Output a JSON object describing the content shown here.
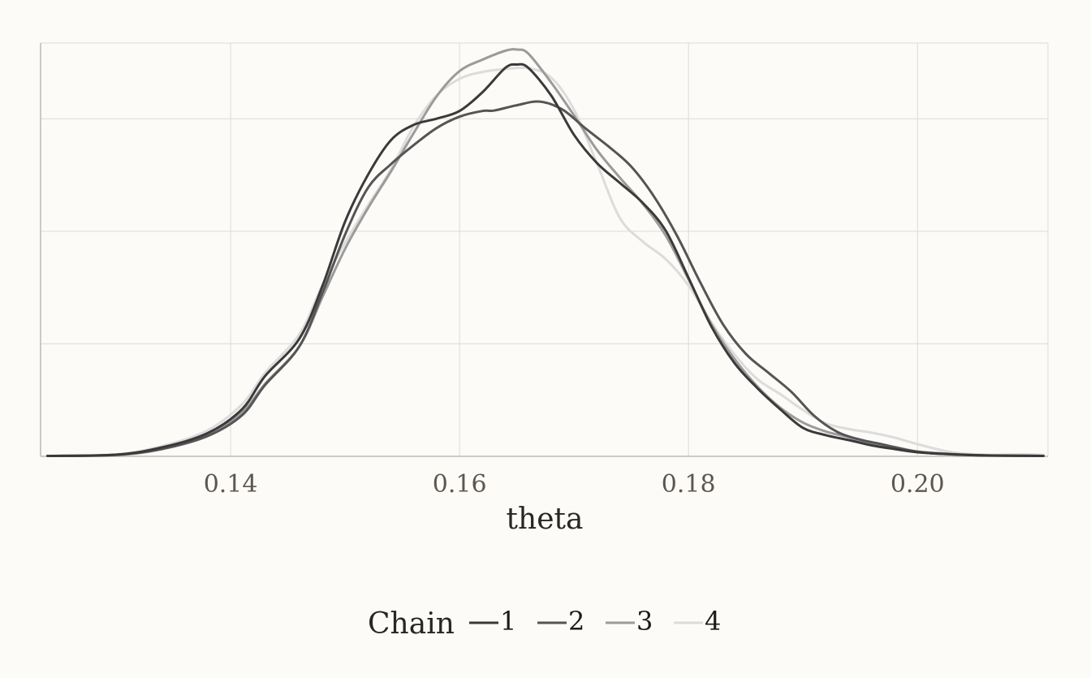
{
  "chart_data": {
    "type": "line",
    "title": "",
    "xlabel": "theta",
    "ylabel": "",
    "xlim": [
      0.1234,
      0.2114
    ],
    "ylim": [
      0,
      1.0
    ],
    "x_ticks": [
      0.14,
      0.16,
      0.18,
      0.2
    ],
    "x_tick_labels": [
      "0.14",
      "0.16",
      "0.18",
      "0.20"
    ],
    "y_gridlines": [
      0.2766,
      0.5532,
      0.8298
    ],
    "grid": true,
    "legend": {
      "title": "Chain",
      "position": "bottom",
      "orientation": "horizontal"
    },
    "series": [
      {
        "name": "1",
        "color": "#3a3a3a",
        "points": [
          [
            0.124,
            0.001
          ],
          [
            0.13,
            0.004
          ],
          [
            0.134,
            0.022
          ],
          [
            0.138,
            0.057
          ],
          [
            0.141,
            0.116
          ],
          [
            0.143,
            0.197
          ],
          [
            0.146,
            0.289
          ],
          [
            0.148,
            0.417
          ],
          [
            0.15,
            0.577
          ],
          [
            0.152,
            0.692
          ],
          [
            0.154,
            0.777
          ],
          [
            0.156,
            0.815
          ],
          [
            0.158,
            0.83
          ],
          [
            0.16,
            0.849
          ],
          [
            0.162,
            0.895
          ],
          [
            0.164,
            0.955
          ],
          [
            0.165,
            0.963
          ],
          [
            0.166,
            0.955
          ],
          [
            0.168,
            0.887
          ],
          [
            0.17,
            0.79
          ],
          [
            0.172,
            0.721
          ],
          [
            0.174,
            0.672
          ],
          [
            0.176,
            0.623
          ],
          [
            0.178,
            0.555
          ],
          [
            0.18,
            0.439
          ],
          [
            0.182,
            0.319
          ],
          [
            0.184,
            0.23
          ],
          [
            0.186,
            0.168
          ],
          [
            0.188,
            0.116
          ],
          [
            0.19,
            0.07
          ],
          [
            0.192,
            0.052
          ],
          [
            0.194,
            0.04
          ],
          [
            0.196,
            0.027
          ],
          [
            0.198,
            0.018
          ],
          [
            0.2,
            0.01
          ],
          [
            0.203,
            0.005
          ],
          [
            0.206,
            0.002
          ],
          [
            0.211,
            0.001
          ]
        ]
      },
      {
        "name": "2",
        "color": "#555555",
        "points": [
          [
            0.124,
            0.001
          ],
          [
            0.13,
            0.004
          ],
          [
            0.134,
            0.018
          ],
          [
            0.138,
            0.05
          ],
          [
            0.141,
            0.101
          ],
          [
            0.143,
            0.175
          ],
          [
            0.146,
            0.27
          ],
          [
            0.148,
            0.4
          ],
          [
            0.15,
            0.545
          ],
          [
            0.152,
            0.66
          ],
          [
            0.154,
            0.718
          ],
          [
            0.156,
            0.765
          ],
          [
            0.158,
            0.807
          ],
          [
            0.16,
            0.835
          ],
          [
            0.162,
            0.849
          ],
          [
            0.163,
            0.85
          ],
          [
            0.165,
            0.863
          ],
          [
            0.167,
            0.872
          ],
          [
            0.169,
            0.852
          ],
          [
            0.171,
            0.806
          ],
          [
            0.173,
            0.762
          ],
          [
            0.175,
            0.712
          ],
          [
            0.177,
            0.638
          ],
          [
            0.179,
            0.542
          ],
          [
            0.181,
            0.429
          ],
          [
            0.183,
            0.325
          ],
          [
            0.185,
            0.252
          ],
          [
            0.187,
            0.205
          ],
          [
            0.189,
            0.158
          ],
          [
            0.191,
            0.099
          ],
          [
            0.193,
            0.06
          ],
          [
            0.195,
            0.041
          ],
          [
            0.197,
            0.029
          ],
          [
            0.199,
            0.016
          ],
          [
            0.201,
            0.008
          ],
          [
            0.204,
            0.004
          ],
          [
            0.207,
            0.002
          ],
          [
            0.211,
            0.001
          ]
        ]
      },
      {
        "name": "3",
        "color": "#9b9b9b",
        "points": [
          [
            0.124,
            0.001
          ],
          [
            0.13,
            0.003
          ],
          [
            0.134,
            0.018
          ],
          [
            0.138,
            0.052
          ],
          [
            0.141,
            0.108
          ],
          [
            0.143,
            0.178
          ],
          [
            0.146,
            0.27
          ],
          [
            0.148,
            0.39
          ],
          [
            0.15,
            0.51
          ],
          [
            0.152,
            0.61
          ],
          [
            0.154,
            0.7
          ],
          [
            0.156,
            0.795
          ],
          [
            0.158,
            0.885
          ],
          [
            0.16,
            0.947
          ],
          [
            0.162,
            0.975
          ],
          [
            0.164,
            0.997
          ],
          [
            0.165,
            1.0
          ],
          [
            0.166,
            0.99
          ],
          [
            0.168,
            0.919
          ],
          [
            0.17,
            0.838
          ],
          [
            0.172,
            0.753
          ],
          [
            0.174,
            0.685
          ],
          [
            0.176,
            0.621
          ],
          [
            0.178,
            0.543
          ],
          [
            0.18,
            0.435
          ],
          [
            0.182,
            0.325
          ],
          [
            0.184,
            0.24
          ],
          [
            0.186,
            0.172
          ],
          [
            0.188,
            0.12
          ],
          [
            0.19,
            0.083
          ],
          [
            0.192,
            0.061
          ],
          [
            0.194,
            0.047
          ],
          [
            0.196,
            0.032
          ],
          [
            0.198,
            0.023
          ],
          [
            0.2,
            0.012
          ],
          [
            0.203,
            0.006
          ],
          [
            0.206,
            0.002
          ],
          [
            0.211,
            0.001
          ]
        ]
      },
      {
        "name": "4",
        "color": "#dcdcdc",
        "points": [
          [
            0.124,
            0.001
          ],
          [
            0.13,
            0.005
          ],
          [
            0.134,
            0.025
          ],
          [
            0.138,
            0.064
          ],
          [
            0.141,
            0.128
          ],
          [
            0.143,
            0.205
          ],
          [
            0.146,
            0.3
          ],
          [
            0.148,
            0.42
          ],
          [
            0.15,
            0.525
          ],
          [
            0.152,
            0.617
          ],
          [
            0.154,
            0.705
          ],
          [
            0.156,
            0.812
          ],
          [
            0.158,
            0.887
          ],
          [
            0.16,
            0.928
          ],
          [
            0.162,
            0.945
          ],
          [
            0.164,
            0.952
          ],
          [
            0.166,
            0.954
          ],
          [
            0.168,
            0.931
          ],
          [
            0.17,
            0.852
          ],
          [
            0.172,
            0.72
          ],
          [
            0.174,
            0.586
          ],
          [
            0.176,
            0.528
          ],
          [
            0.178,
            0.485
          ],
          [
            0.18,
            0.42
          ],
          [
            0.182,
            0.329
          ],
          [
            0.184,
            0.251
          ],
          [
            0.186,
            0.19
          ],
          [
            0.188,
            0.153
          ],
          [
            0.19,
            0.114
          ],
          [
            0.192,
            0.081
          ],
          [
            0.194,
            0.067
          ],
          [
            0.196,
            0.058
          ],
          [
            0.198,
            0.046
          ],
          [
            0.2,
            0.03
          ],
          [
            0.203,
            0.01
          ],
          [
            0.206,
            0.004
          ],
          [
            0.209,
            0.005
          ],
          [
            0.211,
            0.004
          ]
        ]
      }
    ]
  }
}
